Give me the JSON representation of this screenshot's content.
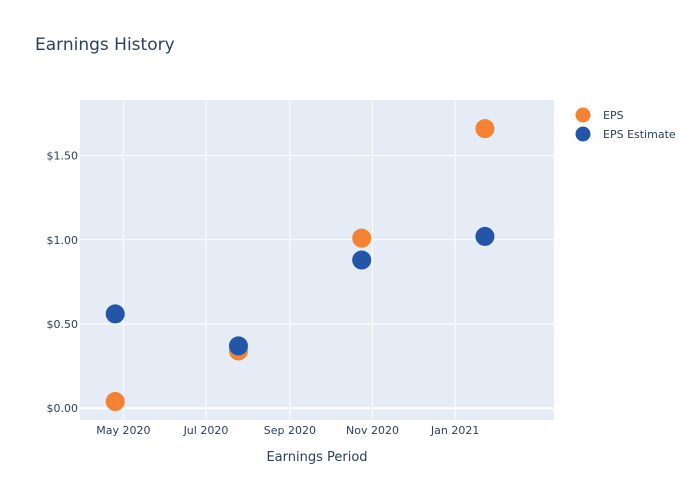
{
  "chart_data": {
    "type": "scatter",
    "title": "Earnings History",
    "xlabel": "Earnings Period",
    "ylabel": "",
    "x_axis": {
      "type": "date",
      "range": [
        "2020-03-30",
        "2021-03-15"
      ],
      "ticks": [
        {
          "value": "2020-05-01",
          "label": "May 2020"
        },
        {
          "value": "2020-07-01",
          "label": "Jul 2020"
        },
        {
          "value": "2020-09-01",
          "label": "Sep 2020"
        },
        {
          "value": "2020-11-01",
          "label": "Nov 2020"
        },
        {
          "value": "2021-01-01",
          "label": "Jan 2021"
        }
      ]
    },
    "y_axis": {
      "range": [
        -0.07,
        1.83
      ],
      "ticks": [
        {
          "value": 0,
          "label": "$0.00"
        },
        {
          "value": 0.5,
          "label": "$0.50"
        },
        {
          "value": 1.0,
          "label": "$1.00"
        },
        {
          "value": 1.5,
          "label": "$1.50"
        }
      ]
    },
    "grid": true,
    "legend": "top-right",
    "series": [
      {
        "name": "EPS",
        "color": "#f58233",
        "points": [
          {
            "x": "2020-04-25",
            "y": 0.04
          },
          {
            "x": "2020-07-25",
            "y": 0.34
          },
          {
            "x": "2020-10-24",
            "y": 1.01
          },
          {
            "x": "2021-01-23",
            "y": 1.66
          }
        ]
      },
      {
        "name": "EPS Estimate",
        "color": "#2356a8",
        "points": [
          {
            "x": "2020-04-25",
            "y": 0.56
          },
          {
            "x": "2020-07-25",
            "y": 0.37
          },
          {
            "x": "2020-10-24",
            "y": 0.88
          },
          {
            "x": "2021-01-23",
            "y": 1.02
          }
        ]
      }
    ]
  },
  "colors": {
    "plot_background": "#e5ecf6",
    "grid": "#ffffff",
    "text": "#2a3f5f"
  }
}
